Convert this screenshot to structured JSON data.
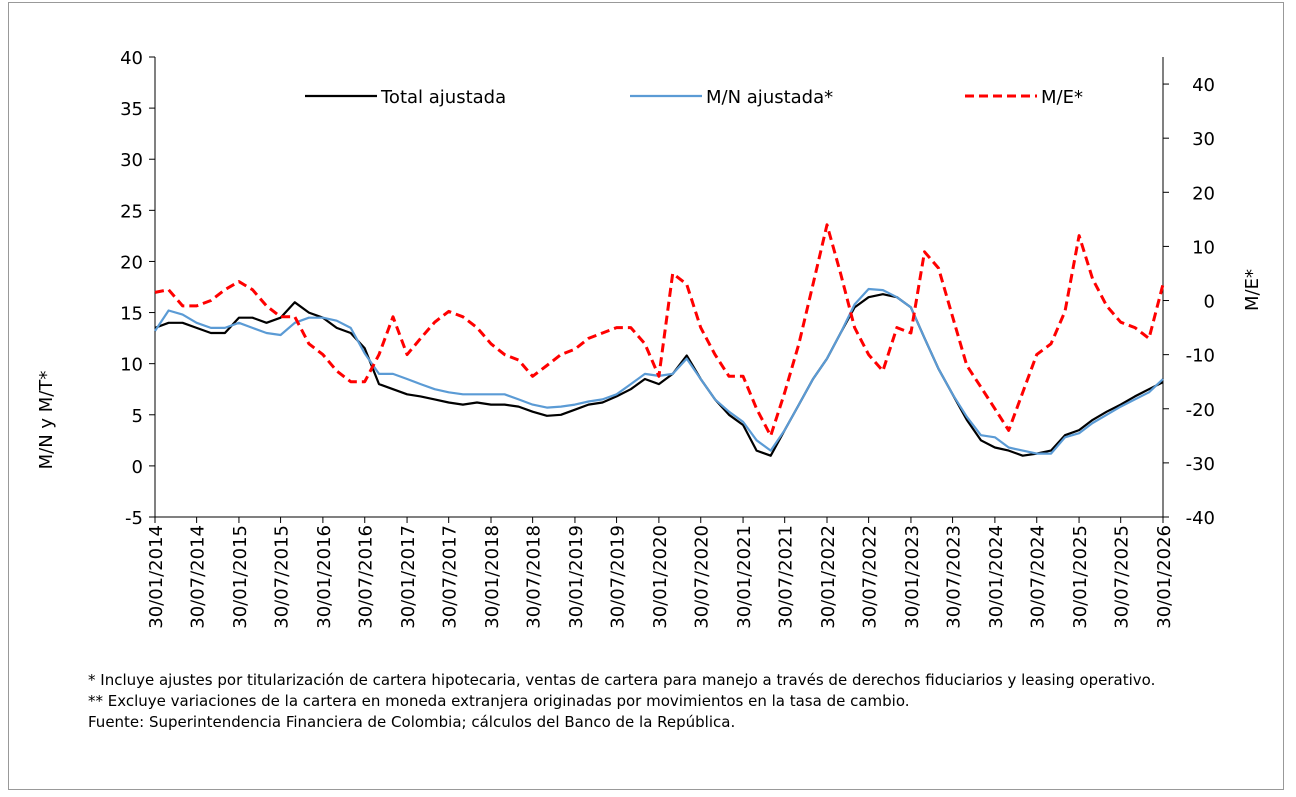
{
  "chart_data": {
    "type": "line",
    "x": [
      "30/01/2014",
      "30/03/2014",
      "30/05/2014",
      "30/07/2014",
      "30/09/2014",
      "30/11/2014",
      "30/01/2015",
      "30/03/2015",
      "30/05/2015",
      "30/07/2015",
      "30/09/2015",
      "30/11/2015",
      "30/01/2016",
      "30/03/2016",
      "30/05/2016",
      "30/07/2016",
      "30/09/2016",
      "30/11/2016",
      "30/01/2017",
      "30/03/2017",
      "30/05/2017",
      "30/07/2017",
      "30/09/2017",
      "30/11/2017",
      "30/01/2018",
      "30/03/2018",
      "30/05/2018",
      "30/07/2018",
      "30/09/2018",
      "30/11/2018",
      "30/01/2019",
      "30/03/2019",
      "30/05/2019",
      "30/07/2019",
      "30/09/2019",
      "30/11/2019",
      "30/01/2020",
      "30/03/2020",
      "30/05/2020",
      "30/07/2020",
      "30/09/2020",
      "30/11/2020",
      "30/01/2021",
      "30/03/2021",
      "30/05/2021",
      "30/07/2021",
      "30/09/2021",
      "30/11/2021",
      "30/01/2022",
      "30/03/2022",
      "30/05/2022",
      "30/07/2022",
      "30/09/2022",
      "30/11/2022",
      "30/01/2023",
      "30/03/2023",
      "30/05/2023",
      "30/07/2023",
      "30/09/2023",
      "30/11/2023",
      "30/01/2024",
      "30/03/2024",
      "30/05/2024",
      "30/07/2024",
      "30/09/2024",
      "30/11/2024",
      "30/01/2025",
      "30/03/2025",
      "30/05/2025",
      "30/07/2025",
      "30/09/2025",
      "30/11/2025",
      "30/01/2026"
    ],
    "series": [
      {
        "name": "Total ajustada",
        "color": "#000000",
        "axis": "y",
        "dashed": false,
        "values": [
          13.5,
          14,
          14,
          13.5,
          13,
          13,
          14.5,
          14.5,
          14,
          14.5,
          16,
          15,
          14.5,
          13.5,
          13,
          11.5,
          8,
          7.5,
          7,
          6.8,
          6.5,
          6.2,
          6,
          6.2,
          6,
          6,
          5.8,
          5.3,
          4.9,
          5,
          5.5,
          6,
          6.2,
          6.8,
          7.5,
          8.5,
          8,
          9,
          10.8,
          8.5,
          6.5,
          5,
          4,
          1.5,
          1,
          3.5,
          6,
          8.5,
          10.5,
          13,
          15.5,
          16.5,
          16.8,
          16.5,
          15.5,
          12.5,
          9.5,
          7,
          4.5,
          2.5,
          1.8,
          1.5,
          1,
          1.2,
          1.5,
          3,
          3.5,
          4.5,
          5.3,
          6,
          6.8,
          7.5,
          8.2
        ]
      },
      {
        "name": "M/N ajustada*",
        "color": "#5b9bd5",
        "axis": "y",
        "dashed": false,
        "values": [
          13.2,
          15.2,
          14.8,
          14,
          13.5,
          13.5,
          14,
          13.5,
          13,
          12.8,
          14,
          14.5,
          14.5,
          14.2,
          13.5,
          11,
          9,
          9,
          8.5,
          8,
          7.5,
          7.2,
          7,
          7,
          7,
          7,
          6.5,
          6,
          5.7,
          5.8,
          6,
          6.3,
          6.5,
          7,
          8,
          9,
          8.8,
          9,
          10.5,
          8.5,
          6.5,
          5.3,
          4.3,
          2.5,
          1.5,
          3.5,
          6,
          8.5,
          10.5,
          13,
          15.8,
          17.3,
          17.2,
          16.5,
          15.5,
          12.5,
          9.5,
          7,
          4.8,
          3,
          2.8,
          1.8,
          1.5,
          1.2,
          1.2,
          2.8,
          3.2,
          4.2,
          5,
          5.8,
          6.5,
          7.2,
          8.5
        ]
      },
      {
        "name": "M/E*",
        "color": "#ff0000",
        "axis": "y2",
        "dashed": true,
        "values": [
          1.5,
          2,
          -1,
          -1,
          0,
          2,
          3.5,
          2,
          -1,
          -3,
          -3,
          -8,
          -10,
          -13,
          -15,
          -15,
          -10,
          -3,
          -10,
          -7,
          -4,
          -2,
          -3,
          -5,
          -8,
          -10,
          -11,
          -14,
          -12,
          -10,
          -9,
          -7,
          -6,
          -5,
          -5,
          -8,
          -14,
          5,
          3,
          -5,
          -10,
          -14,
          -14,
          -20,
          -25,
          -17,
          -8,
          3,
          14,
          5,
          -5,
          -10,
          -13,
          -5,
          -6,
          9,
          6,
          -3,
          -12,
          -16,
          -20,
          -24,
          -17,
          -10,
          -8,
          -2,
          12,
          4,
          -1,
          -4,
          -5,
          -7,
          3
        ]
      }
    ],
    "xlim": [
      "30/01/2014",
      "30/01/2026"
    ],
    "xticks": [
      "30/01/2014",
      "30/07/2014",
      "30/01/2015",
      "30/07/2015",
      "30/01/2016",
      "30/07/2016",
      "30/01/2017",
      "30/07/2017",
      "30/01/2018",
      "30/07/2018",
      "30/01/2019",
      "30/07/2019",
      "30/01/2020",
      "30/07/2020",
      "30/01/2021",
      "30/07/2021",
      "30/01/2022",
      "30/07/2022",
      "30/01/2023",
      "30/07/2023",
      "30/01/2024",
      "30/07/2024",
      "30/01/2025",
      "30/07/2025",
      "30/01/2026"
    ],
    "ylim": [
      -5,
      40
    ],
    "yticks": [
      -5,
      0,
      5,
      10,
      15,
      20,
      25,
      30,
      35,
      40
    ],
    "y2lim": [
      -40,
      45
    ],
    "y2ticks": [
      -40,
      -30,
      -20,
      -10,
      0,
      10,
      20,
      30,
      40
    ],
    "ylabel": "M/N y M/T*",
    "y2label": "M/E*",
    "grid": false,
    "legend": "top",
    "notes": [
      "* Incluye ajustes por titularización de cartera hipotecaria, ventas de cartera para manejo a través de derechos fiduciarios y leasing operativo.",
      "** Excluye variaciones de la cartera en moneda extranjera originadas por movimientos en la tasa de cambio.",
      "Fuente: Superintendencia Financiera de Colombia; cálculos del Banco de la República."
    ]
  }
}
